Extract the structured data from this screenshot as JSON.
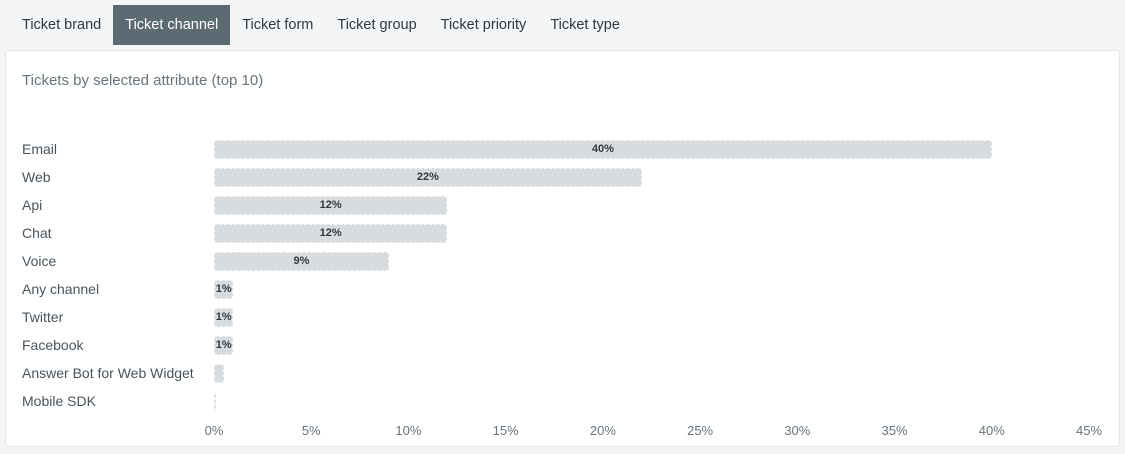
{
  "tabs": {
    "items": [
      {
        "label": "Ticket brand",
        "selected": false
      },
      {
        "label": "Ticket channel",
        "selected": true
      },
      {
        "label": "Ticket form",
        "selected": false
      },
      {
        "label": "Ticket group",
        "selected": false
      },
      {
        "label": "Ticket priority",
        "selected": false
      },
      {
        "label": "Ticket type",
        "selected": false
      }
    ]
  },
  "chart_data": {
    "type": "bar",
    "orientation": "horizontal",
    "title": "Tickets by selected attribute (top 10)",
    "categories": [
      "Email",
      "Web",
      "Api",
      "Chat",
      "Voice",
      "Any channel",
      "Twitter",
      "Facebook",
      "Answer Bot for Web Widget",
      "Mobile SDK"
    ],
    "values": [
      40,
      22,
      12,
      12,
      9,
      1,
      1,
      1,
      0.5,
      0.1
    ],
    "value_labels": [
      "40%",
      "22%",
      "12%",
      "12%",
      "9%",
      "1%",
      "1%",
      "1%",
      "",
      ""
    ],
    "xlabel": "",
    "ylabel": "",
    "xlim": [
      0,
      45
    ],
    "x_ticks": [
      "0%",
      "5%",
      "10%",
      "15%",
      "20%",
      "25%",
      "30%",
      "35%",
      "40%",
      "45%"
    ],
    "x_tick_values": [
      0,
      5,
      10,
      15,
      20,
      25,
      30,
      35,
      40,
      45
    ],
    "grid": false,
    "legend": "none",
    "bar_color": "#d8dcde",
    "value_label_color": "#2f3941"
  },
  "colors": {
    "selected_tab_bg": "#5c6a73",
    "bar_fill": "#d8dcde",
    "value_label": "#2f3941",
    "title": "#68737d"
  }
}
